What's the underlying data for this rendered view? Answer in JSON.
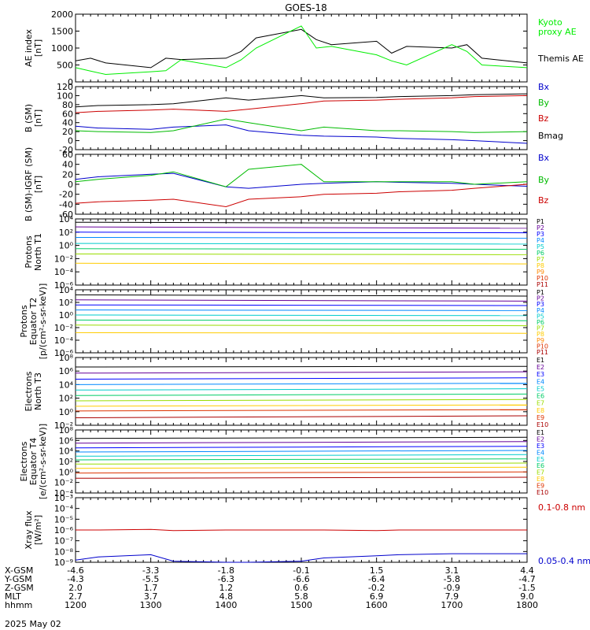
{
  "title": "GOES-18",
  "date_label": "2025 May 02",
  "chart_data": [
    {
      "id": "ae",
      "type": "line",
      "ylabel": [
        "AE index",
        "[nT]"
      ],
      "ylim": [
        0,
        2000
      ],
      "ticks": [
        0,
        500,
        1000,
        1500,
        2000
      ],
      "tick_labels": [
        "0",
        "500",
        "1000",
        "1500",
        "2000"
      ],
      "legend": [
        {
          "label": "Kyoto",
          "color": "#00ee00"
        },
        {
          "label": "proxy AE",
          "color": "#00ee00"
        },
        {
          "label": "Themis AE",
          "color": "#000000"
        }
      ],
      "x": [
        1200,
        1220,
        1240,
        1300,
        1320,
        1340,
        1400,
        1420,
        1440,
        1500,
        1520,
        1540,
        1600,
        1620,
        1640,
        1700,
        1720,
        1740,
        1800
      ],
      "series": [
        {
          "name": "Themis AE",
          "color": "#000000",
          "values": [
            620,
            700,
            560,
            420,
            700,
            660,
            700,
            900,
            1300,
            1550,
            1250,
            1100,
            1200,
            850,
            1050,
            1000,
            1100,
            700,
            560
          ]
        },
        {
          "name": "Kyoto proxy AE",
          "color": "#00ee00",
          "values": [
            420,
            320,
            220,
            300,
            330,
            650,
            420,
            650,
            1000,
            1650,
            1000,
            1050,
            800,
            620,
            500,
            1100,
            900,
            500,
            420
          ]
        }
      ]
    },
    {
      "id": "bsm",
      "type": "line",
      "ylabel": [
        "B (SM)",
        "[nT]"
      ],
      "ylim": [
        -20,
        120
      ],
      "ticks": [
        -20,
        0,
        20,
        40,
        60,
        80,
        100,
        120
      ],
      "tick_labels": [
        "-20",
        "0",
        "20",
        "40",
        "60",
        "80",
        "100",
        "120"
      ],
      "legend": [
        {
          "label": "Bx",
          "color": "#0000cc"
        },
        {
          "label": "By",
          "color": "#00bb00"
        },
        {
          "label": "Bz",
          "color": "#cc0000"
        },
        {
          "label": "Bmag",
          "color": "#000000"
        }
      ],
      "x": [
        1200,
        1230,
        1300,
        1330,
        1400,
        1430,
        1500,
        1530,
        1600,
        1630,
        1700,
        1730,
        1800
      ],
      "series": [
        {
          "name": "Bx",
          "color": "#0000cc",
          "values": [
            32,
            28,
            25,
            30,
            35,
            22,
            12,
            10,
            8,
            5,
            2,
            0,
            -6
          ]
        },
        {
          "name": "By",
          "color": "#00bb00",
          "values": [
            22,
            20,
            18,
            22,
            48,
            40,
            22,
            30,
            22,
            22,
            20,
            18,
            20
          ]
        },
        {
          "name": "Bz",
          "color": "#cc0000",
          "values": [
            62,
            65,
            68,
            70,
            65,
            70,
            82,
            88,
            90,
            92,
            95,
            98,
            100
          ]
        },
        {
          "name": "Bmag",
          "color": "#000000",
          "values": [
            75,
            78,
            80,
            82,
            95,
            90,
            100,
            95,
            96,
            98,
            100,
            102,
            104
          ]
        }
      ]
    },
    {
      "id": "bigrf",
      "type": "line",
      "ylabel": [
        "B (SM)-IGRF (SM)",
        "[nT]"
      ],
      "ylim": [
        -60,
        60
      ],
      "ticks": [
        -60,
        -40,
        -20,
        0,
        20,
        40,
        60
      ],
      "tick_labels": [
        "-60",
        "-40",
        "-20",
        "0",
        "20",
        "40",
        "60"
      ],
      "legend": [
        {
          "label": "Bx",
          "color": "#0000cc"
        },
        {
          "label": "By",
          "color": "#00bb00"
        },
        {
          "label": "Bz",
          "color": "#cc0000"
        }
      ],
      "x": [
        1200,
        1230,
        1300,
        1330,
        1400,
        1430,
        1500,
        1530,
        1600,
        1630,
        1700,
        1730,
        1800
      ],
      "series": [
        {
          "name": "Bx",
          "color": "#0000cc",
          "values": [
            10,
            15,
            20,
            22,
            -5,
            -8,
            0,
            2,
            5,
            4,
            2,
            0,
            -4
          ]
        },
        {
          "name": "By",
          "color": "#00bb00",
          "values": [
            5,
            10,
            18,
            25,
            -5,
            30,
            40,
            5,
            5,
            5,
            5,
            0,
            5
          ]
        },
        {
          "name": "Bz",
          "color": "#cc0000",
          "values": [
            -38,
            -35,
            -32,
            -30,
            -45,
            -30,
            -25,
            -20,
            -18,
            -15,
            -12,
            -8,
            0
          ]
        }
      ]
    },
    {
      "id": "pn",
      "type": "line",
      "log": true,
      "ylabel": [
        "Protons",
        "North T1"
      ],
      "ylim": [
        -6,
        4
      ],
      "ticks": [
        -6,
        -4,
        -2,
        0,
        2,
        4
      ],
      "tick_labels": [
        "10⁻⁶",
        "10⁻⁴",
        "10⁻²",
        "10⁰",
        "10²",
        "10⁴"
      ],
      "legend": [
        {
          "label": "P1",
          "color": "#000000"
        },
        {
          "label": "P2",
          "color": "#660099"
        },
        {
          "label": "P3",
          "color": "#0000ff"
        },
        {
          "label": "P4",
          "color": "#0088ff"
        },
        {
          "label": "P5",
          "color": "#00cccc"
        },
        {
          "label": "P6",
          "color": "#00cc66"
        },
        {
          "label": "P7",
          "color": "#99dd00"
        },
        {
          "label": "P8",
          "color": "#ffcc00"
        },
        {
          "label": "P9",
          "color": "#ff8800"
        },
        {
          "label": "P10",
          "color": "#dd3300"
        },
        {
          "label": "P11",
          "color": "#aa0000"
        }
      ],
      "x": [
        1200,
        1800
      ],
      "series": [
        {
          "name": "P1",
          "color": "#000000",
          "values": [
            3.5,
            3.3
          ]
        },
        {
          "name": "P2",
          "color": "#660099",
          "values": [
            2.8,
            2.6
          ]
        },
        {
          "name": "P3",
          "color": "#0000ff",
          "values": [
            2.0,
            1.9
          ]
        },
        {
          "name": "P4",
          "color": "#0088ff",
          "values": [
            1.2,
            1.1
          ]
        },
        {
          "name": "P5",
          "color": "#00cccc",
          "values": [
            0.3,
            0.2
          ]
        },
        {
          "name": "P6",
          "color": "#00cc66",
          "values": [
            -0.5,
            -0.6
          ]
        },
        {
          "name": "P7",
          "color": "#99dd00",
          "values": [
            -1.3,
            -1.4
          ]
        },
        {
          "name": "P8",
          "color": "#ffcc00",
          "values": [
            -2.7,
            -2.8
          ]
        }
      ]
    },
    {
      "id": "pe",
      "type": "line",
      "log": true,
      "ylabel": [
        "Protons",
        "Equator T2",
        "[p/(cm²-s-sr-keV)]"
      ],
      "ylim": [
        -6,
        4
      ],
      "ticks": [
        -6,
        -4,
        -2,
        0,
        2,
        4
      ],
      "tick_labels": [
        "10⁻⁶",
        "10⁻⁴",
        "10⁻²",
        "10⁰",
        "10²",
        "10⁴"
      ],
      "legend": [
        {
          "label": "P1",
          "color": "#000000"
        },
        {
          "label": "P2",
          "color": "#660099"
        },
        {
          "label": "P3",
          "color": "#0000ff"
        },
        {
          "label": "P4",
          "color": "#0088ff"
        },
        {
          "label": "P5",
          "color": "#00cccc"
        },
        {
          "label": "P6",
          "color": "#00cc66"
        },
        {
          "label": "P7",
          "color": "#99dd00"
        },
        {
          "label": "P8",
          "color": "#ffcc00"
        },
        {
          "label": "P9",
          "color": "#ff8800"
        },
        {
          "label": "P10",
          "color": "#dd3300"
        },
        {
          "label": "P11",
          "color": "#aa0000"
        }
      ],
      "x": [
        1200,
        1800
      ],
      "series": [
        {
          "name": "P1",
          "color": "#000000",
          "values": [
            3.2,
            3.0
          ]
        },
        {
          "name": "P2",
          "color": "#660099",
          "values": [
            2.4,
            2.2
          ]
        },
        {
          "name": "P3",
          "color": "#0000ff",
          "values": [
            1.6,
            1.5
          ]
        },
        {
          "name": "P4",
          "color": "#0088ff",
          "values": [
            0.8,
            0.7
          ]
        },
        {
          "name": "P5",
          "color": "#00cccc",
          "values": [
            0.0,
            -0.1
          ]
        },
        {
          "name": "P6",
          "color": "#00cc66",
          "values": [
            -0.8,
            -0.9
          ]
        },
        {
          "name": "P7",
          "color": "#99dd00",
          "values": [
            -1.6,
            -1.7
          ]
        },
        {
          "name": "P8",
          "color": "#ffcc00",
          "values": [
            -2.8,
            -2.9
          ]
        }
      ]
    },
    {
      "id": "en",
      "type": "line",
      "log": true,
      "ylabel": [
        "Electrons",
        "North T3"
      ],
      "ylim": [
        -2,
        8
      ],
      "ticks": [
        -2,
        0,
        2,
        4,
        6,
        8
      ],
      "tick_labels": [
        "10⁻²",
        "10⁰",
        "10²",
        "10⁴",
        "10⁶",
        "10⁸"
      ],
      "legend": [
        {
          "label": "E1",
          "color": "#000000"
        },
        {
          "label": "E2",
          "color": "#660099"
        },
        {
          "label": "E3",
          "color": "#0000ff"
        },
        {
          "label": "E4",
          "color": "#0088ff"
        },
        {
          "label": "E5",
          "color": "#00cccc"
        },
        {
          "label": "E6",
          "color": "#00cc66"
        },
        {
          "label": "E7",
          "color": "#99dd00"
        },
        {
          "label": "E8",
          "color": "#ffcc00"
        },
        {
          "label": "E9",
          "color": "#dd3300"
        },
        {
          "label": "E10",
          "color": "#aa0000"
        }
      ],
      "x": [
        1200,
        1800
      ],
      "series": [
        {
          "name": "E1",
          "color": "#000000",
          "values": [
            6.6,
            6.7
          ]
        },
        {
          "name": "E2",
          "color": "#660099",
          "values": [
            5.7,
            5.9
          ]
        },
        {
          "name": "E3",
          "color": "#0000ff",
          "values": [
            4.8,
            5.0
          ]
        },
        {
          "name": "E4",
          "color": "#0088ff",
          "values": [
            4.0,
            4.2
          ]
        },
        {
          "name": "E5",
          "color": "#00cccc",
          "values": [
            3.2,
            3.4
          ]
        },
        {
          "name": "E6",
          "color": "#00cc66",
          "values": [
            2.4,
            2.6
          ]
        },
        {
          "name": "E7",
          "color": "#99dd00",
          "values": [
            1.6,
            1.8
          ]
        },
        {
          "name": "E8",
          "color": "#ffcc00",
          "values": [
            0.8,
            1.0
          ]
        },
        {
          "name": "E9",
          "color": "#dd3300",
          "values": [
            0.1,
            0.3
          ]
        },
        {
          "name": "E10",
          "color": "#aa0000",
          "values": [
            -0.9,
            -0.6
          ]
        }
      ]
    },
    {
      "id": "ee",
      "type": "line",
      "log": true,
      "ylabel": [
        "Electrons",
        "Equator T4",
        "[e/(cm²-s-sr-keV)]"
      ],
      "ylim": [
        -4,
        8
      ],
      "ticks": [
        -4,
        -2,
        0,
        2,
        4,
        6,
        8
      ],
      "tick_labels": [
        "10⁻⁴",
        "10⁻²",
        "10⁰",
        "10²",
        "10⁴",
        "10⁶",
        "10⁸"
      ],
      "legend": [
        {
          "label": "E1",
          "color": "#000000"
        },
        {
          "label": "E2",
          "color": "#660099"
        },
        {
          "label": "E3",
          "color": "#0000ff"
        },
        {
          "label": "E4",
          "color": "#0088ff"
        },
        {
          "label": "E5",
          "color": "#00cccc"
        },
        {
          "label": "E6",
          "color": "#00cc66"
        },
        {
          "label": "E7",
          "color": "#99dd00"
        },
        {
          "label": "E8",
          "color": "#ffcc00"
        },
        {
          "label": "E9",
          "color": "#dd3300"
        },
        {
          "label": "E10",
          "color": "#aa0000"
        }
      ],
      "x": [
        1200,
        1800
      ],
      "series": [
        {
          "name": "E1",
          "color": "#000000",
          "values": [
            6.4,
            6.6
          ]
        },
        {
          "name": "E2",
          "color": "#660099",
          "values": [
            5.5,
            5.8
          ]
        },
        {
          "name": "E3",
          "color": "#0000ff",
          "values": [
            4.6,
            4.9
          ]
        },
        {
          "name": "E4",
          "color": "#0088ff",
          "values": [
            3.8,
            4.1
          ]
        },
        {
          "name": "E5",
          "color": "#00cccc",
          "values": [
            3.0,
            3.3
          ]
        },
        {
          "name": "E6",
          "color": "#00cc66",
          "values": [
            2.3,
            2.5
          ]
        },
        {
          "name": "E7",
          "color": "#99dd00",
          "values": [
            1.5,
            1.7
          ]
        },
        {
          "name": "E8",
          "color": "#ffcc00",
          "values": [
            0.7,
            0.9
          ]
        },
        {
          "name": "E9",
          "color": "#dd3300",
          "values": [
            -0.2,
            0.0
          ]
        },
        {
          "name": "E10",
          "color": "#aa0000",
          "values": [
            -1.2,
            -1.0
          ]
        }
      ]
    },
    {
      "id": "xray",
      "type": "line",
      "log": true,
      "ylabel": [
        "Xray flux",
        "[W/m²]"
      ],
      "ylim": [
        -9,
        -3
      ],
      "ticks": [
        -9,
        -8,
        -7,
        -6,
        -5,
        -4,
        -3
      ],
      "tick_labels": [
        "10⁻⁹",
        "10⁻⁸",
        "10⁻⁷",
        "10⁻⁶",
        "10⁻⁵",
        "10⁻⁴",
        "10⁻³"
      ],
      "legend": [
        {
          "label": "0.1-0.8 nm",
          "color": "#cc0000"
        },
        {
          "label": "0.05-0.4 nm",
          "color": "#0000cc"
        }
      ],
      "x": [
        1200,
        1230,
        1300,
        1330,
        1400,
        1430,
        1500,
        1530,
        1600,
        1630,
        1700,
        1730,
        1800
      ],
      "series": [
        {
          "name": "0.1-0.8 nm",
          "color": "#cc0000",
          "values": [
            -6.0,
            -6.0,
            -5.95,
            -6.05,
            -6.0,
            -6.0,
            -6.0,
            -6.0,
            -6.05,
            -6.0,
            -6.0,
            -6.0,
            -6.0
          ]
        },
        {
          "name": "0.05-0.4 nm",
          "color": "#0000cc",
          "values": [
            -8.8,
            -8.5,
            -8.3,
            -8.9,
            -9.0,
            -9.0,
            -8.9,
            -8.6,
            -8.4,
            -8.3,
            -8.2,
            -8.2,
            -8.2
          ]
        }
      ]
    }
  ],
  "x_axis": {
    "row_labels": [
      "X-GSM",
      "Y-GSM",
      "Z-GSM",
      "MLT",
      "hhmm"
    ],
    "columns": [
      [
        "-4.6",
        "-4.3",
        "2.0",
        "2.7",
        "1200"
      ],
      [
        "-3.3",
        "-5.5",
        "1.7",
        "3.7",
        "1300"
      ],
      [
        "-1.8",
        "-6.3",
        "1.2",
        "4.8",
        "1400"
      ],
      [
        "-0.1",
        "-6.6",
        "0.6",
        "5.8",
        "1500"
      ],
      [
        "1.5",
        "-6.4",
        "-0.2",
        "6.9",
        "1600"
      ],
      [
        "3.1",
        "-5.8",
        "-0.9",
        "7.9",
        "1700"
      ],
      [
        "4.4",
        "-4.7",
        "-1.5",
        "9.0",
        "1800"
      ]
    ]
  }
}
